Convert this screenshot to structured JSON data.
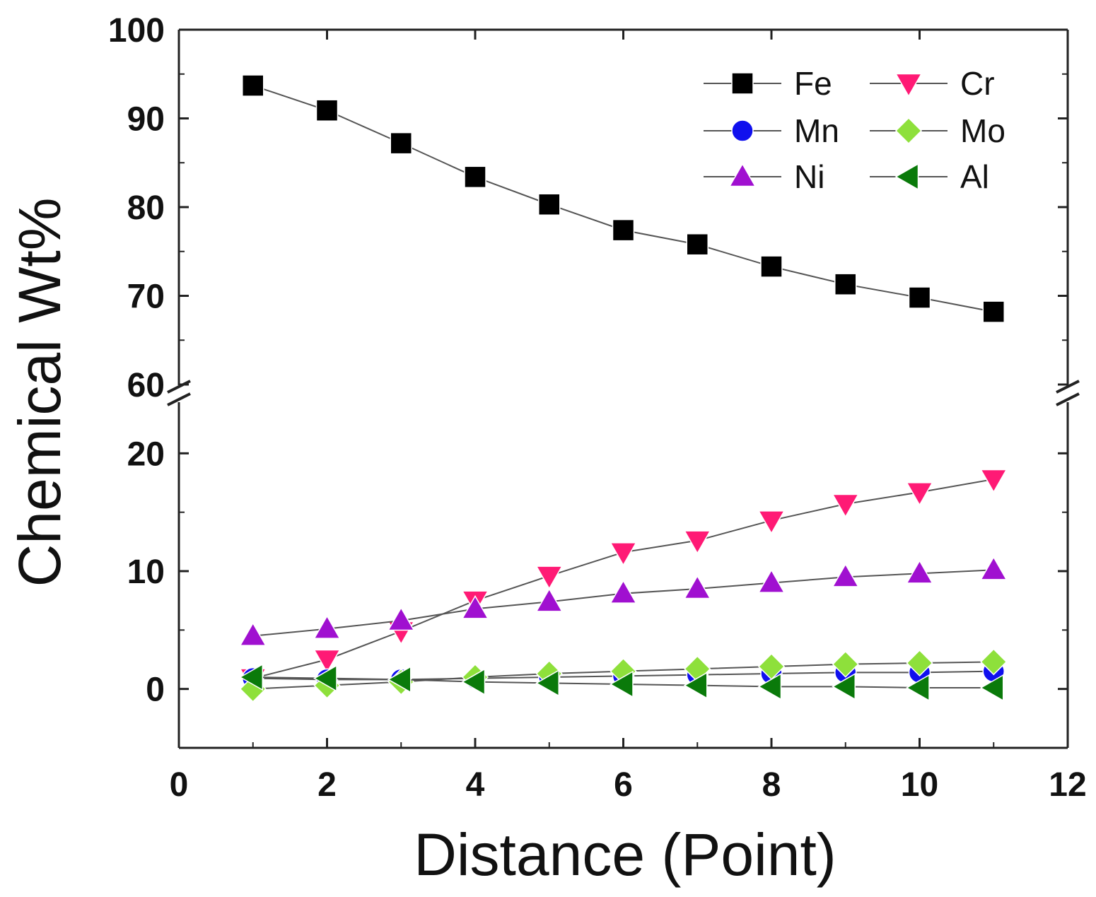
{
  "chart_data": {
    "type": "line",
    "title": "",
    "xlabel": "Distance (Point)",
    "ylabel": "Chemical Wt%",
    "xlim": [
      0,
      12
    ],
    "x_ticks": [
      0,
      2,
      4,
      6,
      8,
      10,
      12
    ],
    "y_axis_break": {
      "lower_range": [
        -5,
        25
      ],
      "upper_range": [
        60,
        100
      ]
    },
    "y_ticks_lower": [
      0,
      10,
      20
    ],
    "y_ticks_upper": [
      60,
      70,
      80,
      90,
      100
    ],
    "legend_position": "top-right",
    "x": [
      1,
      2,
      3,
      4,
      5,
      6,
      7,
      8,
      9,
      10,
      11
    ],
    "series": [
      {
        "name": "Fe",
        "marker": "square",
        "color": "#000000",
        "values": [
          93.7,
          90.9,
          87.2,
          83.4,
          80.3,
          77.4,
          75.8,
          73.3,
          71.3,
          69.8,
          68.2
        ]
      },
      {
        "name": "Cr",
        "marker": "triangle-down",
        "color": "#ff1a75",
        "values": [
          0.9,
          2.5,
          4.9,
          7.5,
          9.6,
          11.6,
          12.6,
          14.3,
          15.7,
          16.7,
          17.8
        ]
      },
      {
        "name": "Mn",
        "marker": "circle",
        "color": "#1010ee",
        "values": [
          0.9,
          0.8,
          0.8,
          0.9,
          1.0,
          1.1,
          1.2,
          1.3,
          1.4,
          1.4,
          1.5
        ]
      },
      {
        "name": "Mo",
        "marker": "diamond",
        "color": "#8ee03b",
        "values": [
          0.0,
          0.3,
          0.6,
          1.0,
          1.3,
          1.5,
          1.7,
          1.9,
          2.1,
          2.2,
          2.3
        ]
      },
      {
        "name": "Ni",
        "marker": "triangle-up",
        "color": "#a010d0",
        "values": [
          4.5,
          5.1,
          5.8,
          6.8,
          7.4,
          8.1,
          8.5,
          9.0,
          9.5,
          9.8,
          10.1
        ]
      },
      {
        "name": "Al",
        "marker": "triangle-left",
        "color": "#0a7a0a",
        "values": [
          1.0,
          0.9,
          0.8,
          0.6,
          0.5,
          0.4,
          0.3,
          0.2,
          0.2,
          0.1,
          0.1
        ]
      }
    ]
  }
}
